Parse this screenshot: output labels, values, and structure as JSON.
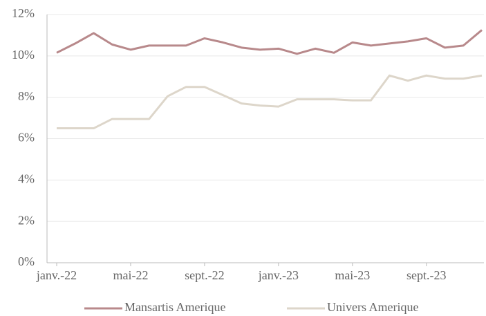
{
  "chart_data": {
    "type": "line",
    "categories": [
      "janv.-22",
      null,
      null,
      null,
      "mai-22",
      null,
      null,
      null,
      "sept.-22",
      null,
      null,
      null,
      "janv.-23",
      null,
      null,
      null,
      "mai-23",
      null,
      null,
      null,
      "sept.-23",
      null,
      null,
      null
    ],
    "series": [
      {
        "name": "Mansartis Amerique",
        "color": "#b8898b",
        "values": [
          10.15,
          10.6,
          11.1,
          10.55,
          10.3,
          10.5,
          10.5,
          10.5,
          10.85,
          10.65,
          10.4,
          10.3,
          10.35,
          10.1,
          10.35,
          10.15,
          10.65,
          10.5,
          10.6,
          10.7,
          10.85,
          10.4,
          10.5,
          11.25
        ]
      },
      {
        "name": "Univers Amerique",
        "color": "#ddd6ca",
        "values": [
          6.5,
          6.5,
          6.5,
          6.95,
          6.95,
          6.95,
          8.05,
          8.5,
          8.5,
          8.1,
          7.7,
          7.6,
          7.55,
          7.9,
          7.9,
          7.9,
          7.85,
          7.85,
          9.05,
          8.8,
          9.05,
          8.9,
          8.9,
          9.05
        ]
      }
    ],
    "ylim": [
      0,
      12
    ],
    "yticks": [
      {
        "value": 0,
        "label": "0%"
      },
      {
        "value": 2,
        "label": "2%"
      },
      {
        "value": 4,
        "label": "4%"
      },
      {
        "value": 6,
        "label": "6%"
      },
      {
        "value": 8,
        "label": "8%"
      },
      {
        "value": 10,
        "label": "10%"
      },
      {
        "value": 12,
        "label": "12%"
      }
    ],
    "grid": true,
    "legend": "bottom"
  }
}
